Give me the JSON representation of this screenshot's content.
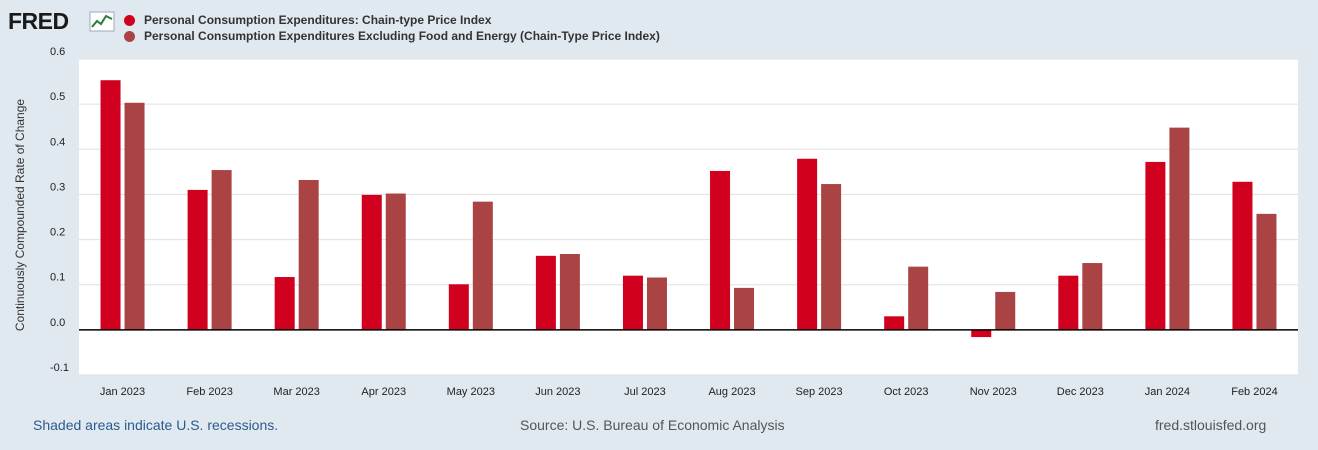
{
  "logo": {
    "text": "FRED"
  },
  "chart_data": {
    "type": "bar",
    "categories": [
      "Jan 2023",
      "Feb 2023",
      "Mar 2023",
      "Apr 2023",
      "May 2023",
      "Jun 2023",
      "Jul 2023",
      "Aug 2023",
      "Sep 2023",
      "Oct 2023",
      "Nov 2023",
      "Dec 2023",
      "Jan 2024",
      "Feb 2024"
    ],
    "series": [
      {
        "name": "Personal Consumption Expenditures: Chain-type Price Index",
        "color": "#d1001f",
        "values": [
          0.553,
          0.31,
          0.117,
          0.299,
          0.101,
          0.164,
          0.12,
          0.352,
          0.379,
          0.03,
          -0.016,
          0.12,
          0.372,
          0.328
        ]
      },
      {
        "name": "Personal Consumption Expenditures Excluding Food and Energy (Chain-Type Price Index)",
        "color": "#aa4444",
        "values": [
          0.503,
          0.354,
          0.332,
          0.302,
          0.284,
          0.168,
          0.116,
          0.093,
          0.323,
          0.14,
          0.084,
          0.148,
          0.448,
          0.257
        ]
      }
    ],
    "yticks": [
      "0.6",
      "0.5",
      "0.4",
      "0.3",
      "0.2",
      "0.1",
      "0.0",
      "-0.1"
    ],
    "ylim": [
      -0.1,
      0.6
    ],
    "ylabel": "Continuously Compounded Rate of Change",
    "grid": true,
    "legend": "top-left"
  },
  "footer": {
    "recession_note": "Shaded areas indicate U.S. recessions.",
    "source": "Source: U.S. Bureau of Economic Analysis",
    "site": "fred.stlouisfed.org"
  }
}
